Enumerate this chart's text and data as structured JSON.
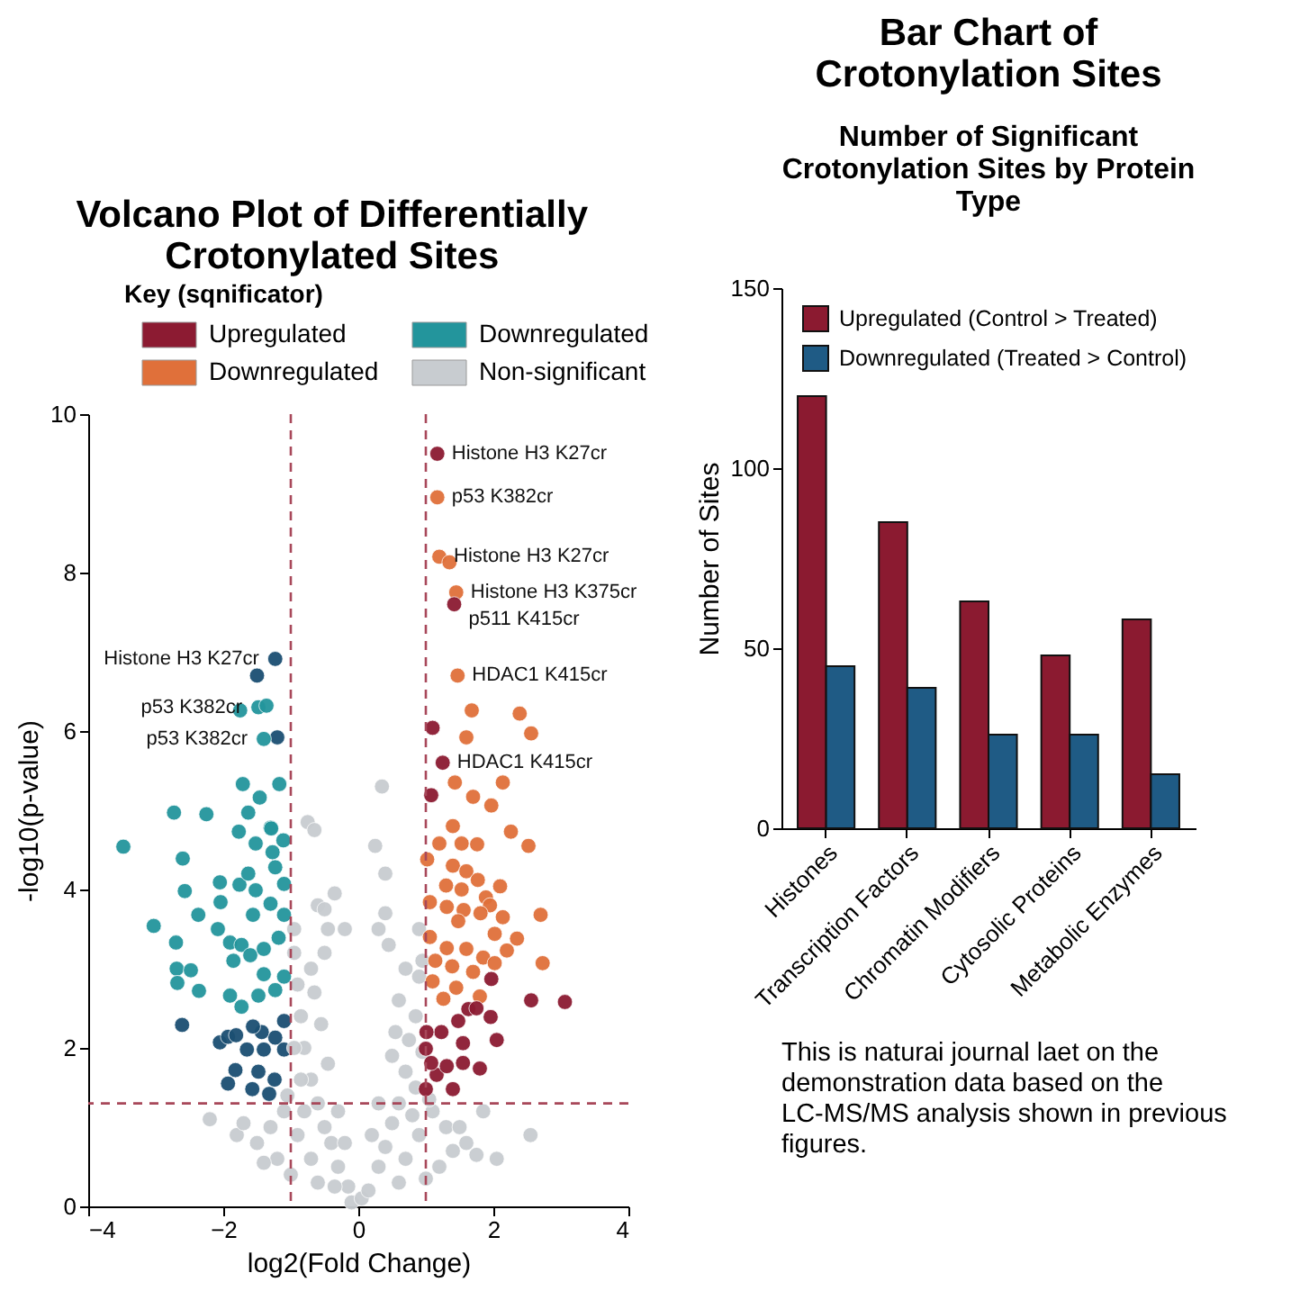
{
  "chart_data": [
    {
      "type": "scatter",
      "title": "Volcano Plot of Differentially Crotonylated Sites",
      "legend_title": "Key (sqnificator)",
      "xlabel": "log2(Fold Change)",
      "ylabel": "-log10(p-value)",
      "xlim": [
        -4,
        4
      ],
      "xticks": [
        -4,
        -2,
        0,
        2,
        4
      ],
      "ylim": [
        0,
        10
      ],
      "yticks": [
        0,
        2,
        4,
        6,
        8,
        10
      ],
      "grid": false,
      "legend": "top",
      "marker": "circle",
      "series": [
        {
          "name": "Upregulated",
          "color": "#8c1b32",
          "x": [
            1.08,
            1.1,
            1.25,
            1.17,
            1.42,
            3.06,
            2.56,
            2.05,
            1.8,
            1.96,
            1.55,
            1.55,
            1.4,
            1.16,
            1.0,
            1.23,
            1.48,
            1.0,
            1.31,
            1.08,
            1.63,
            1.01,
            1.75,
            1.97
          ],
          "values": [
            5.19,
            6.04,
            5.6,
            9.5,
            7.6,
            2.58,
            2.6,
            2.1,
            1.74,
            2.39,
            1.81,
            2.06,
            1.48,
            1.66,
            1.99,
            2.2,
            2.34,
            1.48,
            1.77,
            1.81,
            2.49,
            2.2,
            2.5,
            2.87
          ]
        },
        {
          "name": "Downregulated",
          "color": "#e0703a",
          "x": [
            1.17,
            1.2,
            1.35,
            1.45,
            1.47,
            1.68,
            2.39,
            2.56,
            1.6,
            1.43,
            2.14,
            1.7,
            1.97,
            1.4,
            2.26,
            2.52,
            1.76,
            1.53,
            1.2,
            1.02,
            1.4,
            1.6,
            1.77,
            1.3,
            1.53,
            2.1,
            1.89,
            1.95,
            1.06,
            1.31,
            1.56,
            1.81,
            2.7,
            1.48,
            2.14,
            2.35,
            2.02,
            2.2,
            1.06,
            1.31,
            1.6,
            1.85,
            1.14,
            1.39,
            1.7,
            2.02,
            1.1,
            1.45,
            1.8,
            1.26,
            2.73
          ],
          "values": [
            8.95,
            8.2,
            8.13,
            7.75,
            6.7,
            6.26,
            6.22,
            5.97,
            5.92,
            5.35,
            5.35,
            5.17,
            5.06,
            4.8,
            4.73,
            4.55,
            4.57,
            4.58,
            4.58,
            4.38,
            4.3,
            4.23,
            4.12,
            4.05,
            4.0,
            4.04,
            3.9,
            3.8,
            3.84,
            3.78,
            3.74,
            3.7,
            3.68,
            3.6,
            3.65,
            3.38,
            3.44,
            3.23,
            3.4,
            3.26,
            3.25,
            3.14,
            3.1,
            3.03,
            2.96,
            3.07,
            2.84,
            2.76,
            2.65,
            2.62,
            3.07
          ]
        },
        {
          "name": "Downregulated",
          "color": "#23959c",
          "x": [
            -3.48,
            -2.73,
            -2.25,
            -2.6,
            -3.03,
            -2.7,
            -2.57,
            -2.37,
            -2.69,
            -2.48,
            -2.68,
            -2.36,
            -2.05,
            -2.04,
            -1.76,
            -1.63,
            -1.52,
            -1.52,
            -1.3,
            -1.11,
            -1.71,
            -1.46,
            -1.17,
            -2.08,
            -1.9,
            -1.73,
            -1.85,
            -1.6,
            -1.4,
            -1.18,
            -1.1,
            -1.3,
            -1.56,
            -1.1,
            -1.27,
            -1.23,
            -1.9,
            -1.73,
            -1.48,
            -1.23,
            -1.4,
            -1.1,
            -1.75,
            -1.48,
            -1.36,
            -1.4,
            -1.63,
            -1.77,
            -1.29
          ],
          "values": [
            4.54,
            4.97,
            4.95,
            4.39,
            3.54,
            3.33,
            3.98,
            3.68,
            3.0,
            2.98,
            2.82,
            2.72,
            4.09,
            3.84,
            4.06,
            4.2,
            3.99,
            4.58,
            4.78,
            4.62,
            5.33,
            5.16,
            5.33,
            3.5,
            3.33,
            3.3,
            3.1,
            3.17,
            3.25,
            3.39,
            3.68,
            3.82,
            3.68,
            4.07,
            4.47,
            4.28,
            2.66,
            2.52,
            2.66,
            2.73,
            2.93,
            2.9,
            6.26,
            6.3,
            6.32,
            5.9,
            4.97,
            4.73,
            4.77
          ]
        },
        {
          "name": "Non-significant",
          "color": "#c8ccd0",
          "x": [
            -0.3,
            0.3,
            -0.4,
            0.4,
            -0.5,
            0.5,
            -0.6,
            0.6,
            -0.7,
            0.7,
            -0.8,
            0.75,
            -0.85,
            0.85,
            -0.9,
            0.9,
            -0.95,
            0.95,
            -0.7,
            0.7,
            -0.9,
            0.9,
            -1.1,
            1.1,
            -1.3,
            1.3,
            -1.2,
            1.2,
            -1.5,
            1.4,
            -1.0,
            1.0,
            -0.6,
            0.6,
            -0.45,
            0.5,
            -0.55,
            0.55,
            -0.65,
            0.6,
            -0.7,
            0.7,
            -0.5,
            0.45,
            -0.45,
            0.3,
            -0.6,
            -0.5,
            0.4,
            -0.75,
            -0.65,
            0.35,
            0.25,
            0.4,
            -0.35,
            -0.2,
            0.85,
            -0.85,
            -0.95,
            0.95,
            -0.3,
            0.3,
            -0.2,
            0.2,
            -1.05,
            1.05,
            -2.2,
            -1.8,
            -1.7,
            -1.4,
            1.5,
            1.85,
            2.05,
            2.55,
            1.6,
            1.75,
            -0.1,
            0.05,
            0.15,
            -0.15,
            -0.95,
            0.9,
            -0.8,
            0.8,
            -0.35
          ],
          "values": [
            0.5,
            0.5,
            0.8,
            0.75,
            1.0,
            1.05,
            1.3,
            1.3,
            1.6,
            1.7,
            2.0,
            2.1,
            2.4,
            2.4,
            2.8,
            2.9,
            3.2,
            3.1,
            0.6,
            0.6,
            0.9,
            0.9,
            1.2,
            1.2,
            1.0,
            1.0,
            0.6,
            0.5,
            0.8,
            0.7,
            0.4,
            0.35,
            0.3,
            0.3,
            1.8,
            1.9,
            2.3,
            2.2,
            2.7,
            2.6,
            3.0,
            3.0,
            3.2,
            3.3,
            3.5,
            3.5,
            3.8,
            3.75,
            3.7,
            4.85,
            4.75,
            5.3,
            4.55,
            4.2,
            3.95,
            3.5,
            1.5,
            1.6,
            2.0,
            1.95,
            1.2,
            1.3,
            0.8,
            0.9,
            1.4,
            1.35,
            1.1,
            0.9,
            1.05,
            0.55,
            1.0,
            1.2,
            0.6,
            0.9,
            0.8,
            0.65,
            0.05,
            0.1,
            0.2,
            0.25,
            3.5,
            3.5,
            1.2,
            1.15,
            0.25
          ]
        },
        {
          "color": "#1b4f72",
          "x": [
            -1.23,
            -1.5,
            -1.2,
            -2.61,
            -2.05,
            -1.93,
            -1.81,
            -1.65,
            -1.93,
            -1.82,
            -1.57,
            -1.48,
            -1.32,
            -1.4,
            -1.23,
            -1.1,
            -1.43,
            -1.24,
            -1.56,
            -1.1
          ],
          "values": [
            6.91,
            6.7,
            5.92,
            2.29,
            2.07,
            2.14,
            2.16,
            1.98,
            1.55,
            1.72,
            1.48,
            1.7,
            1.42,
            1.98,
            2.13,
            1.98,
            2.2,
            1.6,
            2.27,
            2.34
          ]
        }
      ],
      "ref_lines": [
        {
          "axis": "x",
          "value": -1,
          "color": "#a8485a",
          "line_style": "dashed"
        },
        {
          "axis": "x",
          "value": 1,
          "color": "#a8485a",
          "line_style": "dashed"
        },
        {
          "axis": "y",
          "value": 1.3,
          "color": "#a8485a",
          "line_style": "dashed"
        }
      ],
      "annotations": [
        {
          "text": "Histone H3 K27cr",
          "x": -1.23,
          "y": 6.91
        },
        {
          "text": "p53 K382cr",
          "x": -1.48,
          "y": 6.3
        },
        {
          "text": "p53 K382cr",
          "x": -1.4,
          "y": 5.9
        },
        {
          "text": "Histone H3 K27cr",
          "x": 1.17,
          "y": 9.5
        },
        {
          "text": "p53 K382cr",
          "x": 1.17,
          "y": 8.95
        },
        {
          "text": "Histone H3 K27cr",
          "x": 1.2,
          "y": 8.2
        },
        {
          "text": "Histone H3 K375cr",
          "x": 1.45,
          "y": 7.75
        },
        {
          "text": "p511 K415cr",
          "x": 1.42,
          "y": 7.6
        },
        {
          "text": "HDAC1 K415cr",
          "x": 1.47,
          "y": 6.7
        },
        {
          "text": "HDAC1 K415cr",
          "x": 1.25,
          "y": 5.6
        }
      ]
    },
    {
      "type": "bar",
      "title": "Bar Chart of Crotonylation Sites",
      "subtitle": "Number of Significant Crotonylation Sites by Protein Type",
      "ylabel": "Number of Sites",
      "categories": [
        "Histones",
        "Transcription Factors",
        "Chromatin Modifiers",
        "Cytosolic Proteins",
        "Metabolic Enzymes"
      ],
      "ylim": [
        0,
        150
      ],
      "yticks": [
        0,
        50,
        100,
        150
      ],
      "grid": false,
      "legend": "top left",
      "series": [
        {
          "name": "Upregulated (Control > Treated)",
          "color": "#8b1a30",
          "values": [
            120,
            85,
            63,
            48,
            58
          ]
        },
        {
          "name": "Downregulated (Treated > Control)",
          "color": "#1f5b85",
          "values": [
            45,
            39,
            26,
            26,
            15
          ]
        }
      ],
      "annotations": [
        "This is naturai journal laet on the demonstration data based on the LC-MS/MS analysis shown in previous figures."
      ]
    }
  ]
}
